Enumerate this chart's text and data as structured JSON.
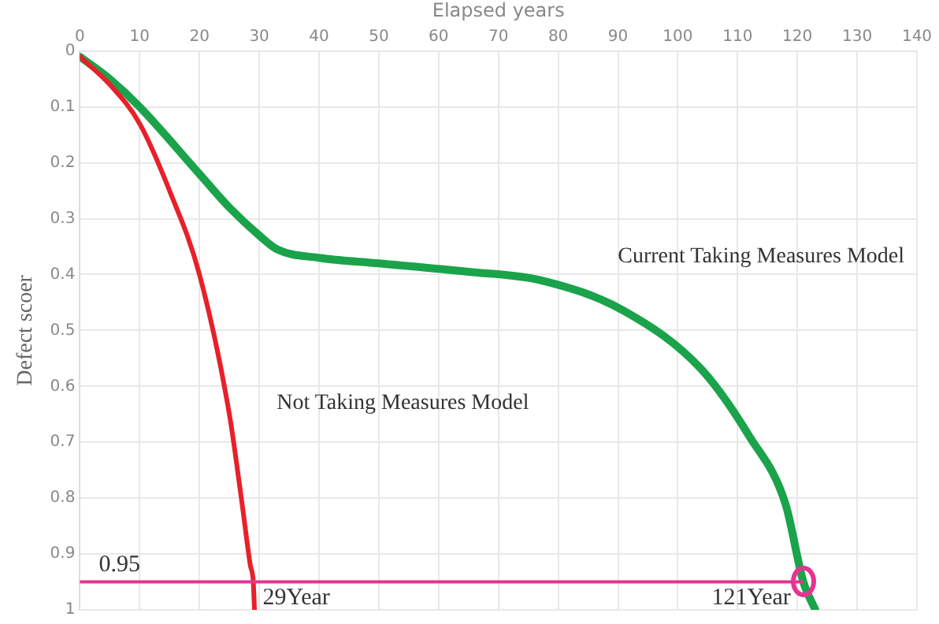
{
  "chart_data": {
    "type": "line",
    "xlabel": "Elapsed years",
    "ylabel": "Defect scoer",
    "xlim": [
      0,
      140
    ],
    "xticks": [
      0,
      10,
      20,
      30,
      40,
      50,
      60,
      70,
      80,
      90,
      100,
      110,
      120,
      130,
      140
    ],
    "ylim": [
      1,
      0
    ],
    "yticks": [
      0,
      0.1,
      0.2,
      0.3,
      0.4,
      0.5,
      0.6,
      0.7,
      0.8,
      0.9,
      1
    ],
    "grid": true,
    "legend": false,
    "marker": "none",
    "line_style": "solid",
    "series": [
      {
        "name": "Not Taking Measures Model",
        "color": "#e8202a",
        "x": [
          0,
          5,
          10,
          15,
          20,
          25,
          27,
          28.5,
          29,
          29.2
        ],
        "values": [
          0.01,
          0.06,
          0.13,
          0.25,
          0.4,
          0.65,
          0.8,
          0.92,
          0.95,
          1
        ]
      },
      {
        "name": "Current Taking Measures Model",
        "color": "#1aa34a",
        "x": [
          0,
          5,
          10,
          20,
          25,
          30,
          33,
          40,
          50,
          65,
          77,
          91,
          104,
          112,
          118,
          121,
          123
        ],
        "values": [
          0.01,
          0.05,
          0.1,
          0.22,
          0.28,
          0.33,
          0.355,
          0.37,
          0.38,
          0.395,
          0.41,
          0.465,
          0.57,
          0.69,
          0.81,
          0.95,
          1
        ]
      }
    ],
    "ref_lines": [
      {
        "axis": "y",
        "value": 0.95,
        "label": "0.95",
        "color": "#e8338f"
      }
    ],
    "annotations": [
      {
        "text": "29Year",
        "x": 29,
        "y": 0.95
      },
      {
        "text": "121Year",
        "x": 121,
        "y": 0.95
      }
    ]
  }
}
